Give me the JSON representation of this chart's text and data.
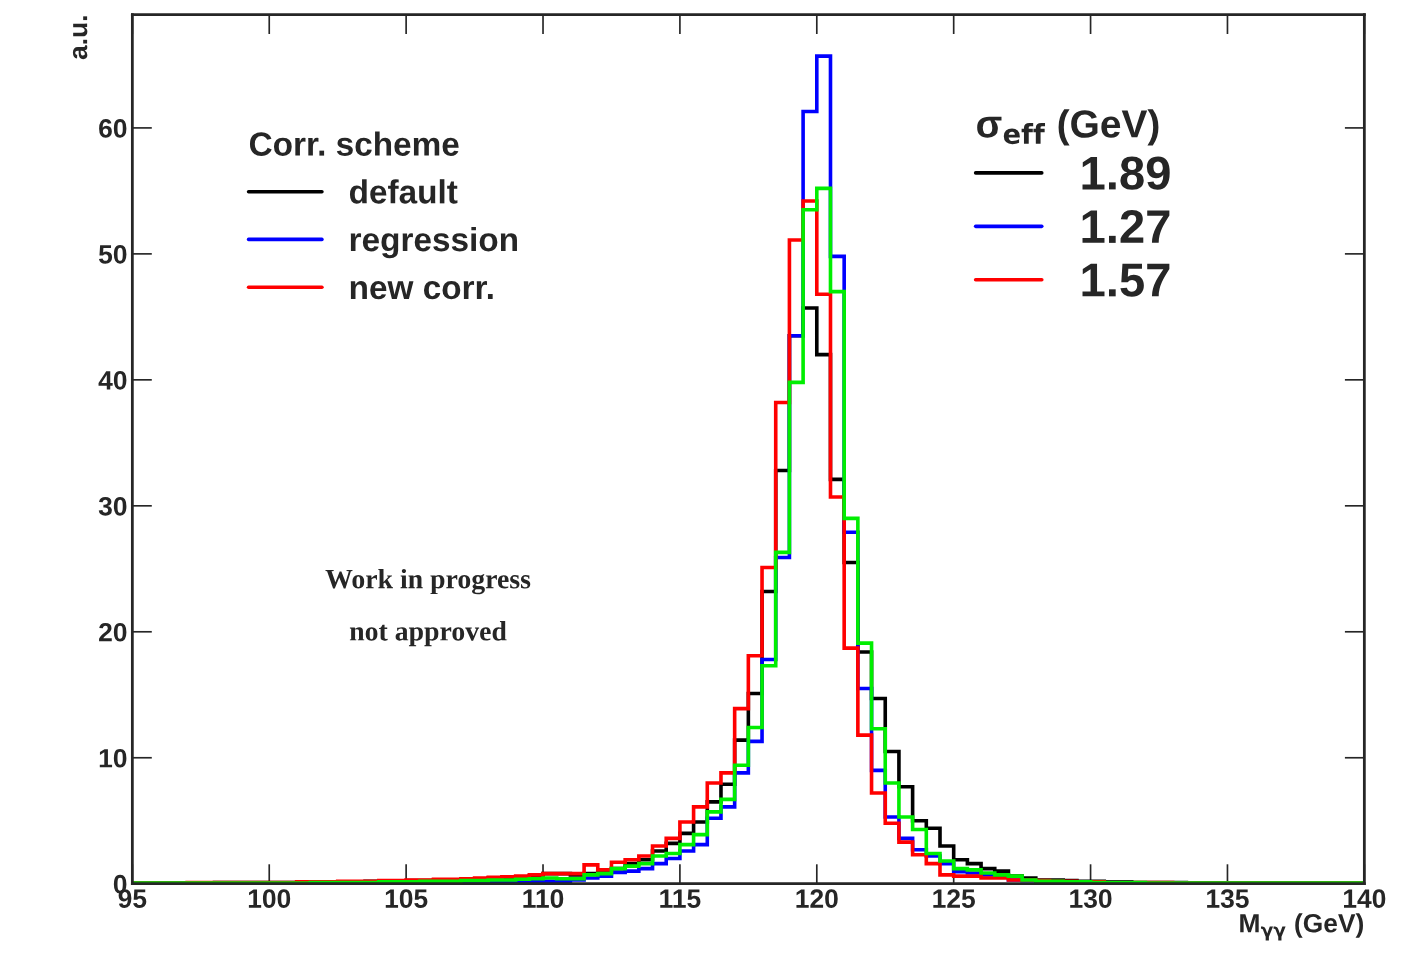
{
  "chart_data": {
    "type": "histogram",
    "xlabel": "M$_{γγ}$ (GeV)",
    "ylabel": "a.u.",
    "legend_title": "Corr. scheme",
    "legend": "top left",
    "annotations": [
      "σ$_{eff}$ (GeV)",
      "1.89",
      "1.27",
      "1.57",
      "Work in progress",
      "not approved"
    ],
    "xlim": [
      95,
      140
    ],
    "ylim": [
      0,
      69
    ],
    "xticks": [
      95,
      100,
      105,
      110,
      115,
      120,
      125,
      130,
      135,
      140
    ],
    "yticks": [
      0,
      10,
      20,
      30,
      40,
      50,
      60
    ],
    "grid": false,
    "bins": [
      95,
      95.5,
      96,
      96.5,
      97,
      97.5,
      98,
      98.5,
      99,
      99.5,
      100,
      100.5,
      101,
      101.5,
      102,
      102.5,
      103,
      103.5,
      104,
      104.5,
      105,
      105.5,
      106,
      106.5,
      107,
      107.5,
      108,
      108.5,
      109,
      109.5,
      110,
      110.5,
      111,
      111.5,
      112,
      112.5,
      113,
      113.5,
      114,
      114.5,
      115,
      115.5,
      116,
      116.5,
      117,
      117.5,
      118,
      118.5,
      119,
      119.5,
      120,
      120.5,
      121,
      121.5,
      122,
      122.5,
      123,
      123.5,
      124,
      124.5,
      125,
      125.5,
      126,
      126.5,
      127,
      127.5,
      128,
      128.5,
      129,
      129.5,
      130,
      130.5,
      131,
      131.5,
      132,
      132.5,
      133,
      133.5,
      134,
      134.5,
      135,
      135.5,
      136,
      136.5,
      137,
      137.5,
      138,
      138.5,
      139,
      139.5,
      140
    ],
    "series": [
      {
        "name": "default",
        "color": "#000000",
        "values": [
          0.05,
          0.05,
          0.05,
          0.05,
          0.05,
          0.05,
          0.1,
          0.1,
          0.1,
          0.1,
          0.1,
          0.1,
          0.1,
          0.1,
          0.15,
          0.15,
          0.15,
          0.2,
          0.2,
          0.2,
          0.25,
          0.25,
          0.3,
          0.3,
          0.35,
          0.4,
          0.45,
          0.5,
          0.55,
          0.6,
          0.8,
          0.8,
          0.7,
          0.8,
          0.95,
          1.2,
          1.6,
          1.9,
          2.6,
          3.2,
          4.0,
          4.9,
          6.5,
          7.9,
          11.4,
          15.1,
          23.2,
          32.8,
          43.5,
          45.7,
          42.0,
          32.1,
          25.5,
          18.4,
          14.7,
          10.5,
          7.7,
          5.0,
          4.4,
          3.0,
          1.9,
          1.6,
          1.2,
          1.0,
          0.6,
          0.45,
          0.3,
          0.3,
          0.25,
          0.2,
          0.2,
          0.15,
          0.15,
          0.1,
          0.1,
          0.1,
          0.1,
          0.05,
          0.05,
          0.05,
          0.05,
          0.05,
          0.05,
          0.05,
          0.05,
          0.05,
          0.05,
          0.05,
          0.05,
          0.05
        ]
      },
      {
        "name": "regression",
        "color": "#0000ff",
        "values": [
          0.05,
          0.05,
          0.05,
          0.05,
          0.05,
          0.05,
          0.05,
          0.05,
          0.05,
          0.05,
          0.05,
          0.05,
          0.05,
          0.05,
          0.05,
          0.1,
          0.1,
          0.1,
          0.1,
          0.1,
          0.1,
          0.1,
          0.15,
          0.15,
          0.15,
          0.2,
          0.2,
          0.2,
          0.2,
          0.2,
          0.2,
          0.2,
          0.3,
          0.45,
          0.6,
          0.9,
          1.0,
          1.2,
          1.6,
          2.0,
          2.6,
          3.1,
          5.2,
          6.1,
          8.8,
          11.3,
          17.8,
          25.9,
          43.5,
          61.3,
          65.7,
          49.8,
          27.9,
          15.5,
          9.0,
          5.3,
          3.6,
          2.7,
          2.2,
          1.6,
          0.95,
          0.85,
          0.7,
          0.6,
          0.3,
          0.25,
          0.2,
          0.15,
          0.15,
          0.1,
          0.1,
          0.1,
          0.1,
          0.05,
          0.05,
          0.05,
          0.05,
          0.05,
          0.05,
          0.05,
          0.05,
          0.05,
          0.05,
          0.05,
          0.05,
          0.05,
          0.05,
          0.05,
          0.05,
          0.05
        ]
      },
      {
        "name": "new corr.",
        "color": "#ff0000",
        "values": [
          0.05,
          0.05,
          0.05,
          0.05,
          0.1,
          0.1,
          0.1,
          0.1,
          0.1,
          0.1,
          0.1,
          0.1,
          0.15,
          0.15,
          0.15,
          0.2,
          0.2,
          0.2,
          0.25,
          0.25,
          0.3,
          0.3,
          0.35,
          0.35,
          0.4,
          0.45,
          0.5,
          0.55,
          0.6,
          0.7,
          0.8,
          0.8,
          0.8,
          1.5,
          1.1,
          1.7,
          1.9,
          2.2,
          3.0,
          3.6,
          4.9,
          6.1,
          8.0,
          8.8,
          13.9,
          18.1,
          25.1,
          38.2,
          51.1,
          54.2,
          46.8,
          30.7,
          18.7,
          11.8,
          7.2,
          4.8,
          3.3,
          2.3,
          1.6,
          0.7,
          0.6,
          0.6,
          0.45,
          0.45,
          0.3,
          0.3,
          0.25,
          0.2,
          0.2,
          0.15,
          0.15,
          0.1,
          0.1,
          0.1,
          0.1,
          0.1,
          0.05,
          0.05,
          0.05,
          0.05,
          0.05,
          0.05,
          0.05,
          0.05,
          0.05,
          0.05,
          0.05,
          0.05,
          0.05,
          0.05
        ]
      },
      {
        "color": "#00ee00",
        "values": [
          0.05,
          0.05,
          0.05,
          0.05,
          0.05,
          0.05,
          0.05,
          0.05,
          0.05,
          0.05,
          0.05,
          0.05,
          0.05,
          0.1,
          0.1,
          0.1,
          0.1,
          0.1,
          0.15,
          0.15,
          0.15,
          0.2,
          0.2,
          0.2,
          0.25,
          0.25,
          0.3,
          0.3,
          0.35,
          0.4,
          0.45,
          0.4,
          0.4,
          0.7,
          0.8,
          1.2,
          1.4,
          1.6,
          2.2,
          2.4,
          3.1,
          3.9,
          5.7,
          6.7,
          9.4,
          12.4,
          17.3,
          26.3,
          39.8,
          53.5,
          55.2,
          47.0,
          29.0,
          19.1,
          12.3,
          8.0,
          5.3,
          4.3,
          2.4,
          1.8,
          1.2,
          1.1,
          0.85,
          0.7,
          0.6,
          0.3,
          0.2,
          0.2,
          0.15,
          0.15,
          0.1,
          0.1,
          0.1,
          0.1,
          0.05,
          0.05,
          0.05,
          0.05,
          0.05,
          0.05,
          0.05,
          0.05,
          0.05,
          0.05,
          0.05,
          0.05,
          0.05,
          0.05,
          0.05,
          0.05
        ]
      }
    ]
  }
}
